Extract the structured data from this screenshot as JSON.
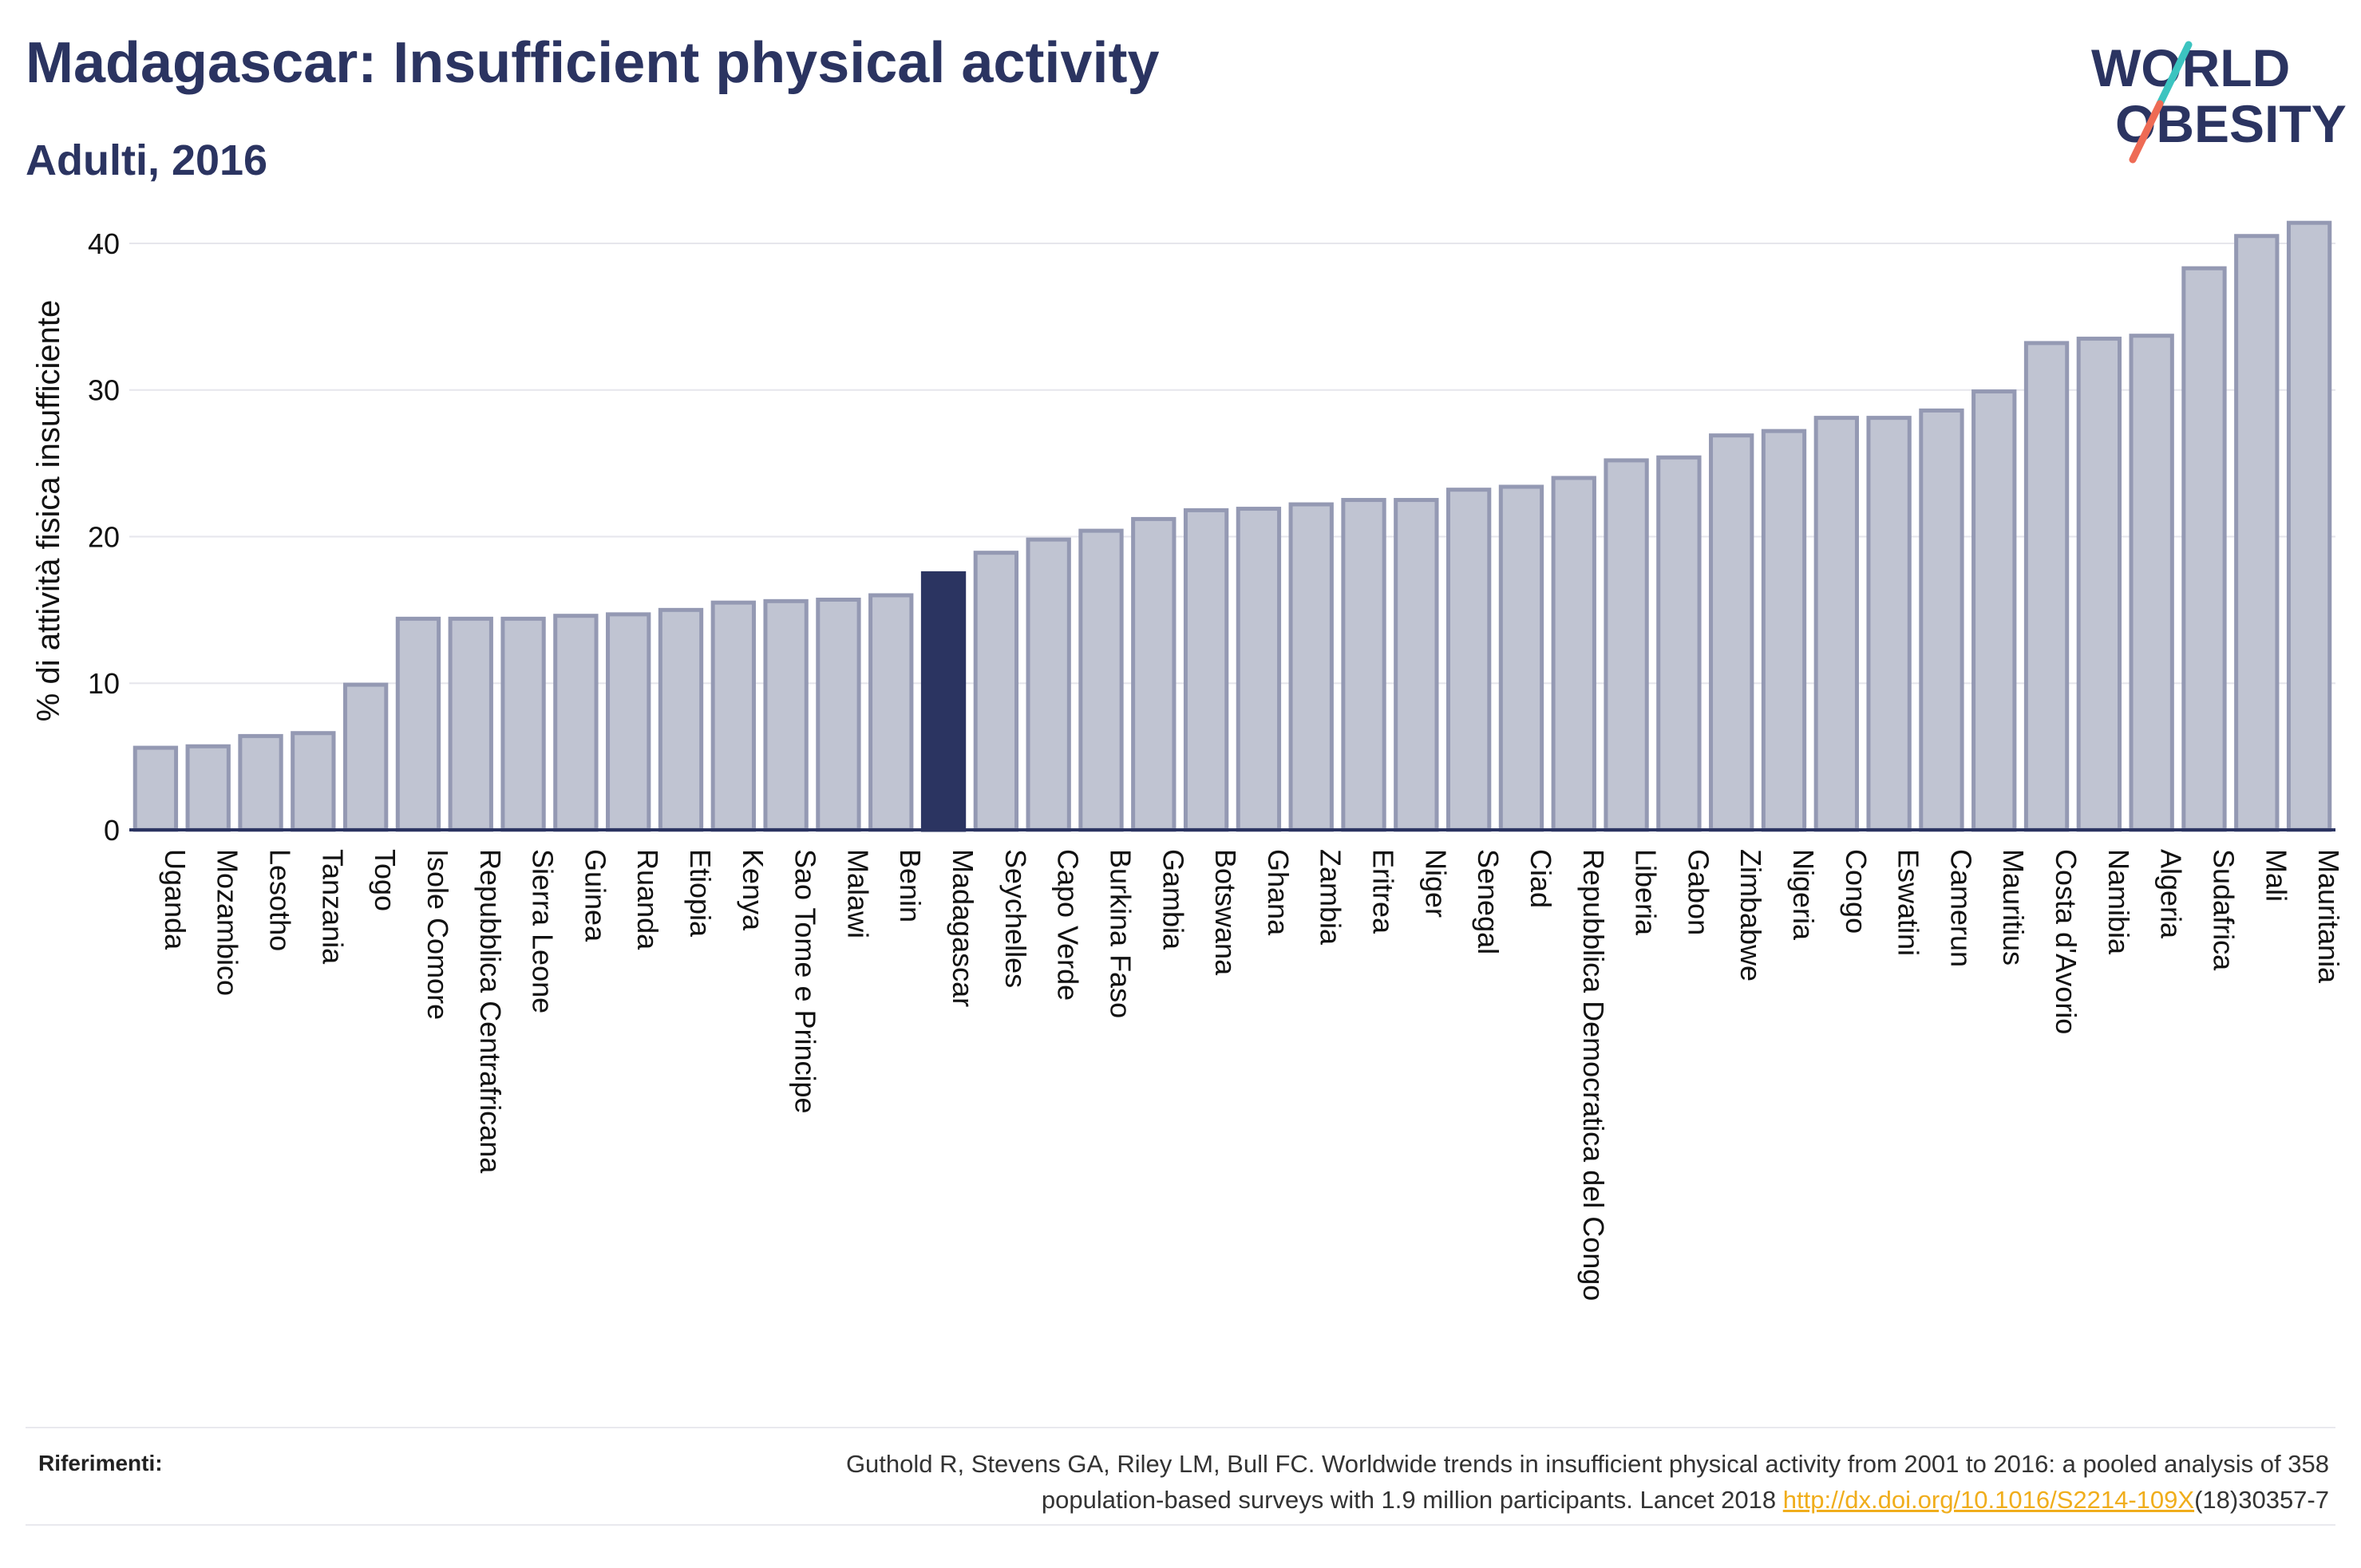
{
  "header": {
    "title": "Madagascar: Insufficient physical activity",
    "subtitle": "Adulti, 2016"
  },
  "logo": {
    "line1": "WORLD",
    "line2": "OBESITY",
    "colors": {
      "text": "#2b3461",
      "slash_top": "#3cc4c0",
      "slash_bottom": "#ee6b55"
    }
  },
  "chart_data": {
    "type": "bar",
    "ylabel": "% di attività fisica insufficiente",
    "xlabel": "",
    "ylim": [
      0,
      42.5
    ],
    "yticks": [
      0,
      10,
      20,
      30,
      40
    ],
    "grid": true,
    "highlight": "Madagascar",
    "colors": {
      "bar": "#c0c4d2",
      "bar_border": "#9499b3",
      "highlight": "#2b3461",
      "axis": "#2b3461",
      "grid": "#e6e6ec"
    },
    "categories": [
      "Uganda",
      "Mozambico",
      "Lesotho",
      "Tanzania",
      "Togo",
      "Isole Comore",
      "Repubblica Centrafricana",
      "Sierra Leone",
      "Guinea",
      "Ruanda",
      "Etiopia",
      "Kenya",
      "Sao Tome e Principe",
      "Malawi",
      "Benin",
      "Madagascar",
      "Seychelles",
      "Capo Verde",
      "Burkina Faso",
      "Gambia",
      "Botswana",
      "Ghana",
      "Zambia",
      "Eritrea",
      "Niger",
      "Senegal",
      "Ciad",
      "Repubblica Democratica del Congo",
      "Liberia",
      "Gabon",
      "Zimbabwe",
      "Nigeria",
      "Congo",
      "Eswatini",
      "Camerun",
      "Mauritius",
      "Costa d'Avorio",
      "Namibia",
      "Algeria",
      "Sudafrica",
      "Mali",
      "Mauritania"
    ],
    "values": [
      5.6,
      5.7,
      6.4,
      6.6,
      9.9,
      14.4,
      14.4,
      14.4,
      14.6,
      14.7,
      15.0,
      15.5,
      15.6,
      15.7,
      16.0,
      17.5,
      18.9,
      19.8,
      20.4,
      21.2,
      21.8,
      21.9,
      22.2,
      22.5,
      22.5,
      23.2,
      23.4,
      24.0,
      25.2,
      25.4,
      26.9,
      27.2,
      28.1,
      28.1,
      28.6,
      29.9,
      33.2,
      33.5,
      33.7,
      38.3,
      40.5,
      41.4
    ]
  },
  "references": {
    "label": "Riferimenti:",
    "line1": "Guthold R, Stevens GA, Riley LM, Bull FC. Worldwide trends in insufficient physical activity from 2001 to 2016: a pooled analysis of 358",
    "line2_prefix": "population-based surveys with 1.9 million participants. Lancet 2018 ",
    "link": "http://dx.doi.org/10.1016/S2214-109X",
    "line2_suffix": "(18)30357-7"
  }
}
